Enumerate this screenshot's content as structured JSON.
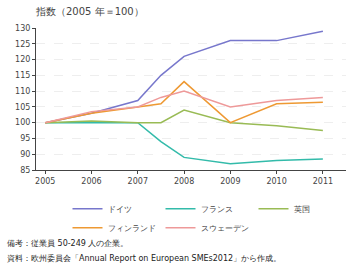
{
  "chart_data": {
    "type": "line",
    "title": "指数（2005 年＝100）",
    "x": [
      2005,
      2006,
      2007,
      2007.5,
      2008,
      2009,
      2010,
      2011
    ],
    "xlim": [
      2004.8,
      2011.5
    ],
    "xticks": [
      2005,
      2006,
      2007,
      2008,
      2009,
      2010,
      2011
    ],
    "ylim": [
      85,
      130
    ],
    "yticks": [
      85,
      90,
      95,
      100,
      105,
      110,
      115,
      120,
      125,
      130
    ],
    "series": [
      {
        "name": "ドイツ",
        "color": "#7777cc",
        "values": [
          100,
          103,
          107,
          115,
          121,
          126,
          126,
          129
        ]
      },
      {
        "name": "フランス",
        "color": "#33bbaa",
        "values": [
          100,
          100,
          100,
          94,
          89,
          87,
          88,
          88.5
        ]
      },
      {
        "name": "英国",
        "color": "#99bb55",
        "values": [
          100,
          100.5,
          100,
          100,
          104,
          100,
          99,
          97.5
        ]
      },
      {
        "name": "フィンランド",
        "color": "#ee9933",
        "values": [
          100,
          103,
          105,
          106,
          113,
          100,
          106,
          106.5
        ]
      },
      {
        "name": "スウェーデン",
        "color": "#ee9999",
        "values": [
          100,
          103.5,
          105,
          108,
          110,
          105,
          107,
          108
        ]
      }
    ],
    "grid": "y",
    "legend": "bottom",
    "annotations": [
      "備考：従業員 50-249 人の企業。",
      "資料：欧州委員会「Annual Report on European SMEs2012」から作成。"
    ]
  }
}
